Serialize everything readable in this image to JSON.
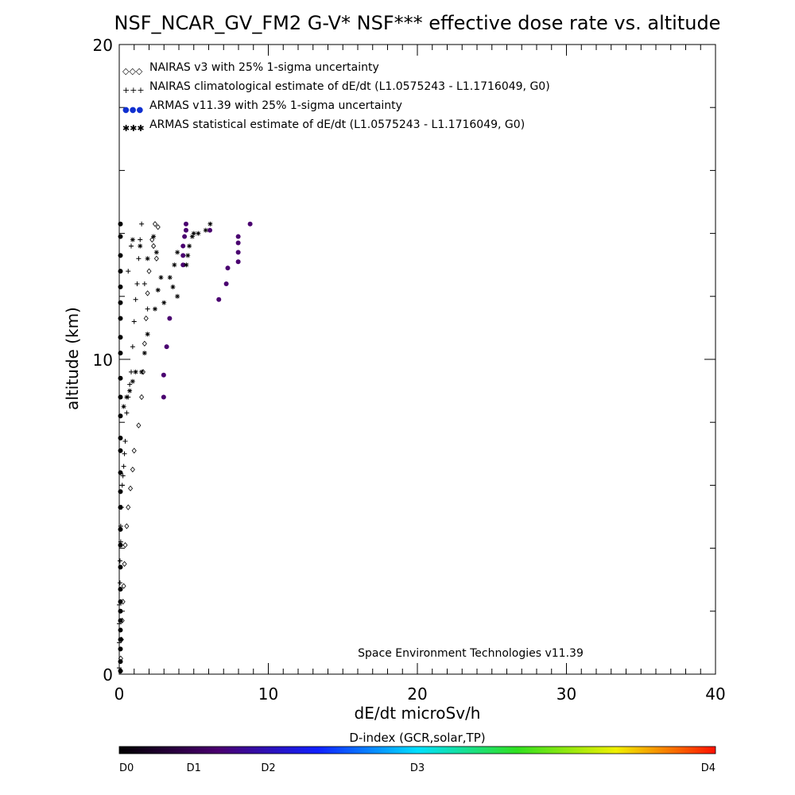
{
  "chart_data": {
    "type": "scatter",
    "title": "NSF_NCAR_GV_FM2 G-V* NSF*** effective dose rate vs. altitude",
    "xlabel": "dE/dt microSv/h",
    "ylabel": "altitude (km)",
    "xlim": [
      0,
      40
    ],
    "ylim": [
      0,
      20
    ],
    "x_ticks": [
      "0",
      "10",
      "20",
      "30",
      "40"
    ],
    "y_ticks": [
      "0",
      "10",
      "20"
    ],
    "grid": false,
    "legend_placement": "top-left",
    "credit": "Space Environment Technologies v11.39",
    "legend": [
      {
        "symbol": "◇◇◇",
        "label": "NAIRAS v3 with 25% 1-sigma uncertainty"
      },
      {
        "symbol": "+++",
        "label": "NAIRAS climatological estimate of dE/dt (L1.0575243 - L1.1716049, G0)"
      },
      {
        "symbol": "●●●",
        "label": "ARMAS v11.39 with 25% 1-sigma uncertainty",
        "color": "#1030d0"
      },
      {
        "symbol": "✱✱✱",
        "label": "ARMAS statistical estimate of dE/dt (L1.0575243 - L1.1716049, G0)"
      }
    ],
    "series": [
      {
        "marker": "diamond",
        "points": [
          [
            0.1,
            0.1
          ],
          [
            0.1,
            0.5
          ],
          [
            0.15,
            1.1
          ],
          [
            0.2,
            1.7
          ],
          [
            0.25,
            2.3
          ],
          [
            0.3,
            2.8
          ],
          [
            0.35,
            3.5
          ],
          [
            0.4,
            4.1
          ],
          [
            0.5,
            4.7
          ],
          [
            0.6,
            5.3
          ],
          [
            0.75,
            5.9
          ],
          [
            0.9,
            6.5
          ],
          [
            1.0,
            7.1
          ],
          [
            1.3,
            7.9
          ],
          [
            1.5,
            8.8
          ],
          [
            1.6,
            9.6
          ],
          [
            1.7,
            10.5
          ],
          [
            1.8,
            11.3
          ],
          [
            1.9,
            12.1
          ],
          [
            2.0,
            12.8
          ],
          [
            2.2,
            13.8
          ],
          [
            2.4,
            14.3
          ],
          [
            2.5,
            13.2
          ],
          [
            2.3,
            13.6
          ],
          [
            2.6,
            14.2
          ]
        ]
      },
      {
        "marker": "plus",
        "points": [
          [
            0,
            0.2
          ],
          [
            0,
            1.0
          ],
          [
            0,
            1.6
          ],
          [
            0,
            2.2
          ],
          [
            0.05,
            2.9
          ],
          [
            0.05,
            3.6
          ],
          [
            0.1,
            4.2
          ],
          [
            0.1,
            4.7
          ],
          [
            0.15,
            5.3
          ],
          [
            0.2,
            6.0
          ],
          [
            0.25,
            6.3
          ],
          [
            0.3,
            6.6
          ],
          [
            0.35,
            7.0
          ],
          [
            0.4,
            7.4
          ],
          [
            0.5,
            8.3
          ],
          [
            0.6,
            8.8
          ],
          [
            0.7,
            9.2
          ],
          [
            0.8,
            9.6
          ],
          [
            0.9,
            10.4
          ],
          [
            1.0,
            11.2
          ],
          [
            1.1,
            11.9
          ],
          [
            1.2,
            12.4
          ],
          [
            1.3,
            13.2
          ],
          [
            1.4,
            13.8
          ],
          [
            1.5,
            14.3
          ],
          [
            1.7,
            12.4
          ],
          [
            1.9,
            11.6
          ],
          [
            0.8,
            13.6
          ],
          [
            0.6,
            12.8
          ]
        ]
      },
      {
        "marker": "dot",
        "color_key": "D1",
        "points": [
          [
            0,
            0.1
          ],
          [
            0,
            0.4
          ],
          [
            0,
            0.8
          ],
          [
            0,
            1.1
          ],
          [
            0,
            1.4
          ],
          [
            0,
            1.7
          ],
          [
            0,
            2.0
          ],
          [
            0,
            2.3
          ],
          [
            0,
            2.7
          ],
          [
            0,
            3.4
          ],
          [
            0,
            4.1
          ],
          [
            0,
            4.6
          ],
          [
            0,
            5.3
          ],
          [
            0,
            5.8
          ],
          [
            0,
            6.4
          ],
          [
            0,
            7.1
          ],
          [
            0,
            7.5
          ],
          [
            0,
            8.2
          ],
          [
            0,
            8.8
          ],
          [
            0,
            9.4
          ],
          [
            0,
            10.2
          ],
          [
            0,
            10.7
          ],
          [
            0,
            11.3
          ],
          [
            0,
            11.8
          ],
          [
            0,
            12.3
          ],
          [
            0,
            12.8
          ],
          [
            0,
            13.3
          ],
          [
            0,
            13.9
          ],
          [
            0,
            14.3
          ],
          [
            2.9,
            8.8
          ],
          [
            2.9,
            9.5
          ],
          [
            3.1,
            10.4
          ],
          [
            3.3,
            11.3
          ],
          [
            6.6,
            11.9
          ],
          [
            7.1,
            12.4
          ],
          [
            7.2,
            12.9
          ],
          [
            7.9,
            13.1
          ],
          [
            7.9,
            13.4
          ],
          [
            7.9,
            13.7
          ],
          [
            7.9,
            13.9
          ],
          [
            4.2,
            13.0
          ],
          [
            4.2,
            13.3
          ],
          [
            4.2,
            13.6
          ],
          [
            4.3,
            13.9
          ],
          [
            4.4,
            14.1
          ],
          [
            4.4,
            14.3
          ],
          [
            6.0,
            14.1
          ],
          [
            8.7,
            14.3
          ]
        ]
      },
      {
        "marker": "star",
        "points": [
          [
            0.3,
            8.5
          ],
          [
            0.5,
            8.8
          ],
          [
            0.7,
            9.0
          ],
          [
            0.9,
            9.3
          ],
          [
            1.1,
            9.6
          ],
          [
            1.5,
            9.6
          ],
          [
            1.7,
            10.2
          ],
          [
            1.9,
            10.8
          ],
          [
            2.4,
            11.6
          ],
          [
            2.6,
            12.2
          ],
          [
            2.8,
            12.6
          ],
          [
            3.0,
            11.8
          ],
          [
            3.4,
            12.6
          ],
          [
            3.7,
            13.0
          ],
          [
            3.9,
            13.4
          ],
          [
            4.5,
            13.0
          ],
          [
            4.6,
            13.3
          ],
          [
            4.7,
            13.6
          ],
          [
            4.9,
            13.9
          ],
          [
            5.0,
            14.0
          ],
          [
            5.3,
            14.0
          ],
          [
            5.8,
            14.1
          ],
          [
            6.1,
            14.3
          ],
          [
            0.9,
            13.8
          ],
          [
            1.4,
            13.6
          ],
          [
            1.9,
            13.2
          ],
          [
            2.3,
            13.9
          ],
          [
            2.5,
            13.4
          ],
          [
            3.6,
            12.3
          ],
          [
            3.9,
            12.0
          ]
        ]
      }
    ]
  },
  "colorbar": {
    "title": "D-index (GCR,solar,TP)",
    "labels": [
      "D0",
      "D1",
      "D2",
      "D3",
      "D4"
    ],
    "stops": [
      "#000000",
      "#4a0070",
      "#1020ff",
      "#00e0ff",
      "#30e020",
      "#f0f000",
      "#ff1000"
    ]
  }
}
